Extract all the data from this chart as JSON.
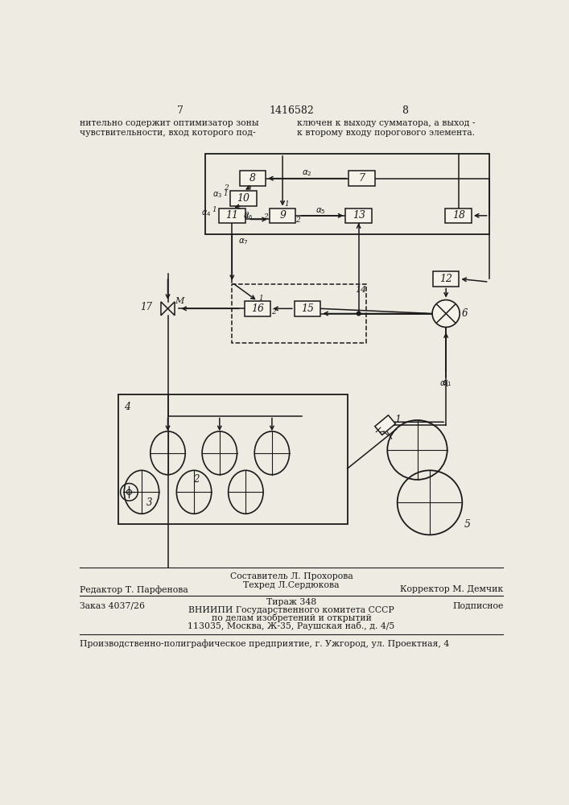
{
  "page_numbers_left": "7",
  "page_numbers_center": "1416582",
  "page_numbers_right": "8",
  "top_text_left": "нительно содержит оптимизатор зоны\nчувствительности, вход которого под-",
  "top_text_right": "ключен к выходу сумматора, а выход -\nк второму входу порогового элемента.",
  "footer_line1": "Составитель Л. Прохорова",
  "footer_line2_left": "Редактор Т. Парфенова",
  "footer_line2_mid": "Техред Л.Сердюкова",
  "footer_line2_right": "Корректор М. Демчик",
  "footer_line3_left": "Заказ 4037/26",
  "footer_line3_mid": "Тираж 348",
  "footer_line3_right": "Подписное",
  "footer_line4": "ВНИИПИ Государственного комитета СССР",
  "footer_line5": "по делам изобретений и открытий",
  "footer_line6": "113035, Москва, Ж-35, Раушская наб., д. 4/5",
  "footer_line7": "Производственно-полиграфическое предприятие, г. Ужгород, ул. Проектная, 4",
  "bg_color": "#eeebe3",
  "line_color": "#1a1a1a",
  "box_color": "#f5f2ea"
}
